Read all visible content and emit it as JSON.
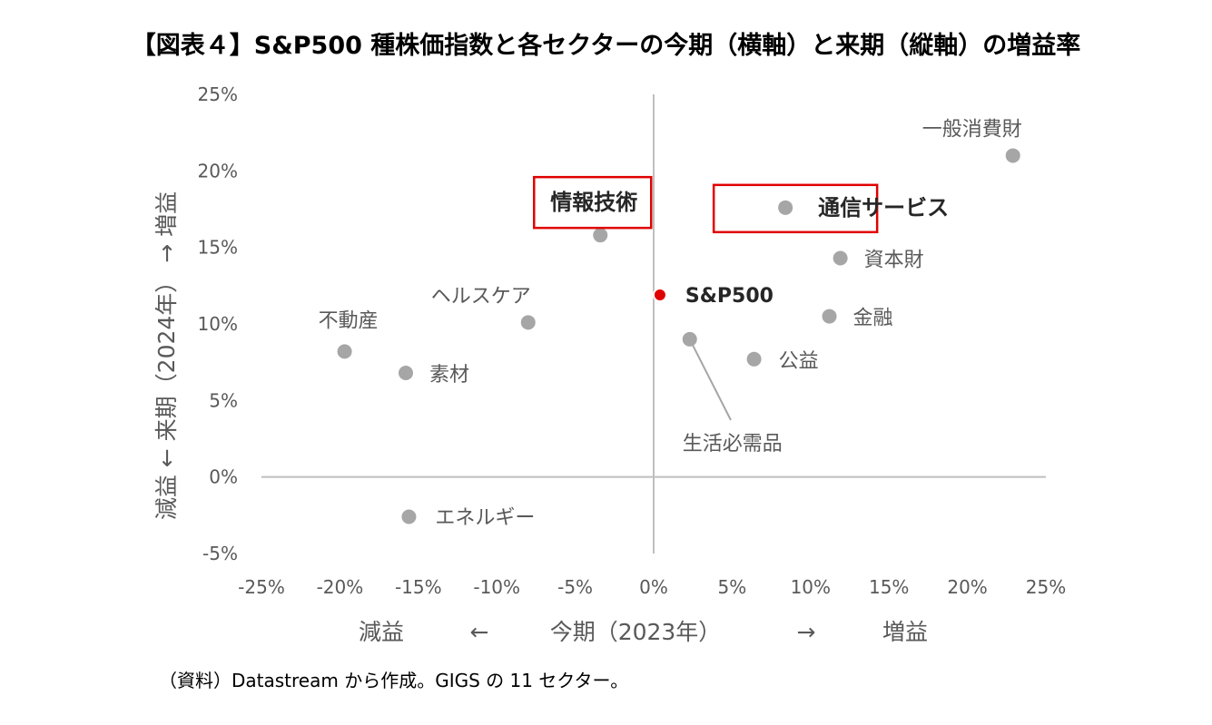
{
  "title": "【図表４】S&P500 種株価指数と各セクターの今期（横軸）と来期（縦軸）の増益率",
  "footnote": "（資料）Datastream から作成。GIGS の 11 セクター。",
  "chart_data": {
    "type": "scatter",
    "title": "【図表４】S&P500 種株価指数と各セクターの今期（横軸）と来期（縦軸）の増益率",
    "xlabel": "減益 ← 今期（2023年） → 増益",
    "ylabel": "減益 ← 来期（2024年） → 増益",
    "x_axis_text": {
      "left": "減益",
      "left_arrow": "←",
      "center": "今期（2023年）",
      "right_arrow": "→",
      "right": "増益"
    },
    "xlim": [
      -25,
      25
    ],
    "ylim": [
      -5,
      25
    ],
    "x_ticks": [
      "-25%",
      "-20%",
      "-15%",
      "-10%",
      "-5%",
      "0%",
      "5%",
      "10%",
      "15%",
      "20%",
      "25%"
    ],
    "y_ticks": [
      "-5%",
      "0%",
      "5%",
      "10%",
      "15%",
      "20%",
      "25%"
    ],
    "grid": false,
    "colors": {
      "point": "#a6a6a6",
      "highlight": "#e00000",
      "box": "#e00000",
      "axis": "#bfbfbf",
      "text": "#595959"
    },
    "points": [
      {
        "label": "一般消費財",
        "x": 22.9,
        "y": 21.0
      },
      {
        "label": "通信サービス",
        "x": 8.4,
        "y": 17.6,
        "boxed": true
      },
      {
        "label": "資本財",
        "x": 11.9,
        "y": 14.3
      },
      {
        "label": "金融",
        "x": 11.2,
        "y": 10.5
      },
      {
        "label": "公益",
        "x": 6.4,
        "y": 7.7
      },
      {
        "label": "生活必需品",
        "x": 2.3,
        "y": 9.0
      },
      {
        "label": "S&P500",
        "x": 0.4,
        "y": 11.9,
        "highlight": true
      },
      {
        "label": "情報技術",
        "x": -3.4,
        "y": 15.8,
        "boxed": true
      },
      {
        "label": "ヘルスケア",
        "x": -8.0,
        "y": 10.1
      },
      {
        "label": "不動産",
        "x": -19.7,
        "y": 8.2
      },
      {
        "label": "素材",
        "x": -15.8,
        "y": 6.8
      },
      {
        "label": "エネルギー",
        "x": -15.6,
        "y": -2.6
      }
    ]
  }
}
